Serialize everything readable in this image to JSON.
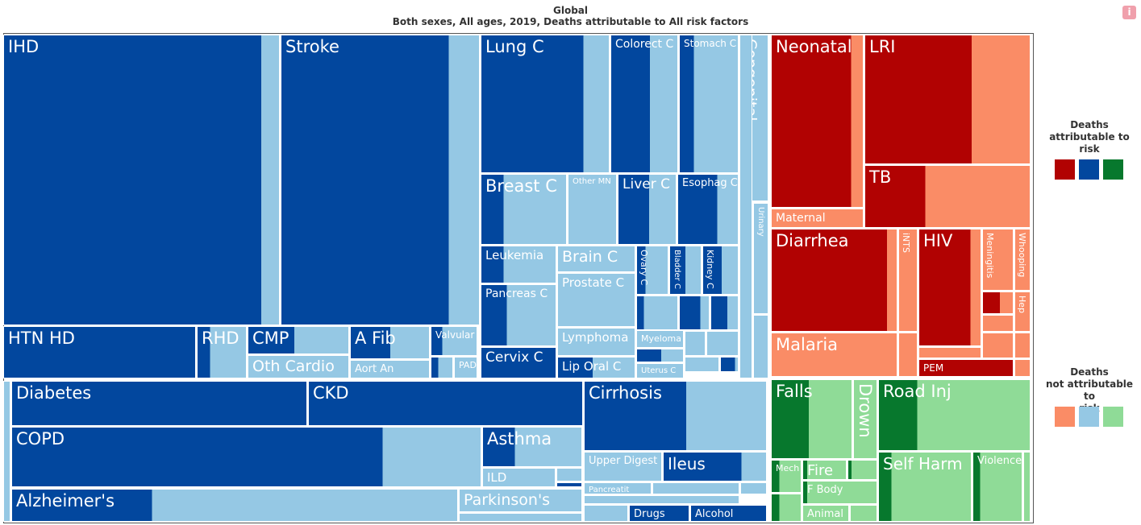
{
  "chart_data": {
    "type": "treemap",
    "title": "Global",
    "subtitle": "Both sexes, All ages, 2019, Deaths attributable to All risk factors",
    "colors": {
      "ncd_attr": "#02479e",
      "ncd_not": "#95c8e4",
      "com_attr": "#b10202",
      "com_not": "#fa8c66",
      "inj_attr": "#07782d",
      "inj_not": "#8fdb97"
    },
    "legend": {
      "attributable": "Deaths\nattributable to\nrisk",
      "not_attributable": "Deaths\nnot attributable to\nrisk"
    },
    "labels": {
      "IHD": "IHD",
      "Stroke": "Stroke",
      "LungC": "Lung C",
      "ColorectC": "Colorect C",
      "StomachC": "Stomach C",
      "Congenital": "Congenital",
      "Urinary": "Urinary",
      "BreastC": "Breast C",
      "OtherMN": "Other MN",
      "LiverC": "Liver C",
      "EsophagC": "Esophag C",
      "Leukemia": "Leukemia",
      "BrainC": "Brain C",
      "OvaryC": "Ovary C",
      "BladderC": "Bladder C",
      "KidneyC": "Kidney C",
      "PancreasC": "Pancreas C",
      "ProstateC": "Prostate C",
      "Lymphoma": "Lymphoma",
      "Myeloma": "Myeloma",
      "CervixC": "Cervix C",
      "LipOralC": "Lip Oral C",
      "UterusC": "Uterus C",
      "HTNHD": "HTN HD",
      "RHD": "RHD",
      "CMP": "CMP",
      "AFib": "A Fib",
      "Valvular": "Valvular",
      "OthCardio": "Oth Cardio",
      "AortAn": "Aort An",
      "PAD": "PAD",
      "Diabetes": "Diabetes",
      "CKD": "CKD",
      "Cirrhosis": "Cirrhosis",
      "COPD": "COPD",
      "Asthma": "Asthma",
      "ILD": "ILD",
      "UpperDigest": "Upper Digest",
      "Ileus": "Ileus",
      "Pancreatit": "Pancreatit",
      "Alzheimers": "Alzheimer's",
      "Parkinsons": "Parkinson's",
      "Drugs": "Drugs",
      "Alcohol": "Alcohol",
      "Neonatal": "Neonatal",
      "LRI": "LRI",
      "Maternal": "Maternal",
      "TB": "TB",
      "Diarrhea": "Diarrhea",
      "iNTS": "iNTS",
      "HIV": "HIV",
      "Meningitis": "Meningitis",
      "Whooping": "Whooping",
      "Hep": "Hep",
      "PEM": "PEM",
      "Malaria": "Malaria",
      "Falls": "Falls",
      "Drown": "Drown",
      "RoadInj": "Road Inj",
      "Mech": "Mech",
      "Fire": "Fire",
      "FBody": "F Body",
      "Animal": "Animal",
      "SelfHarm": "Self Harm",
      "Violence": "Violence"
    }
  }
}
